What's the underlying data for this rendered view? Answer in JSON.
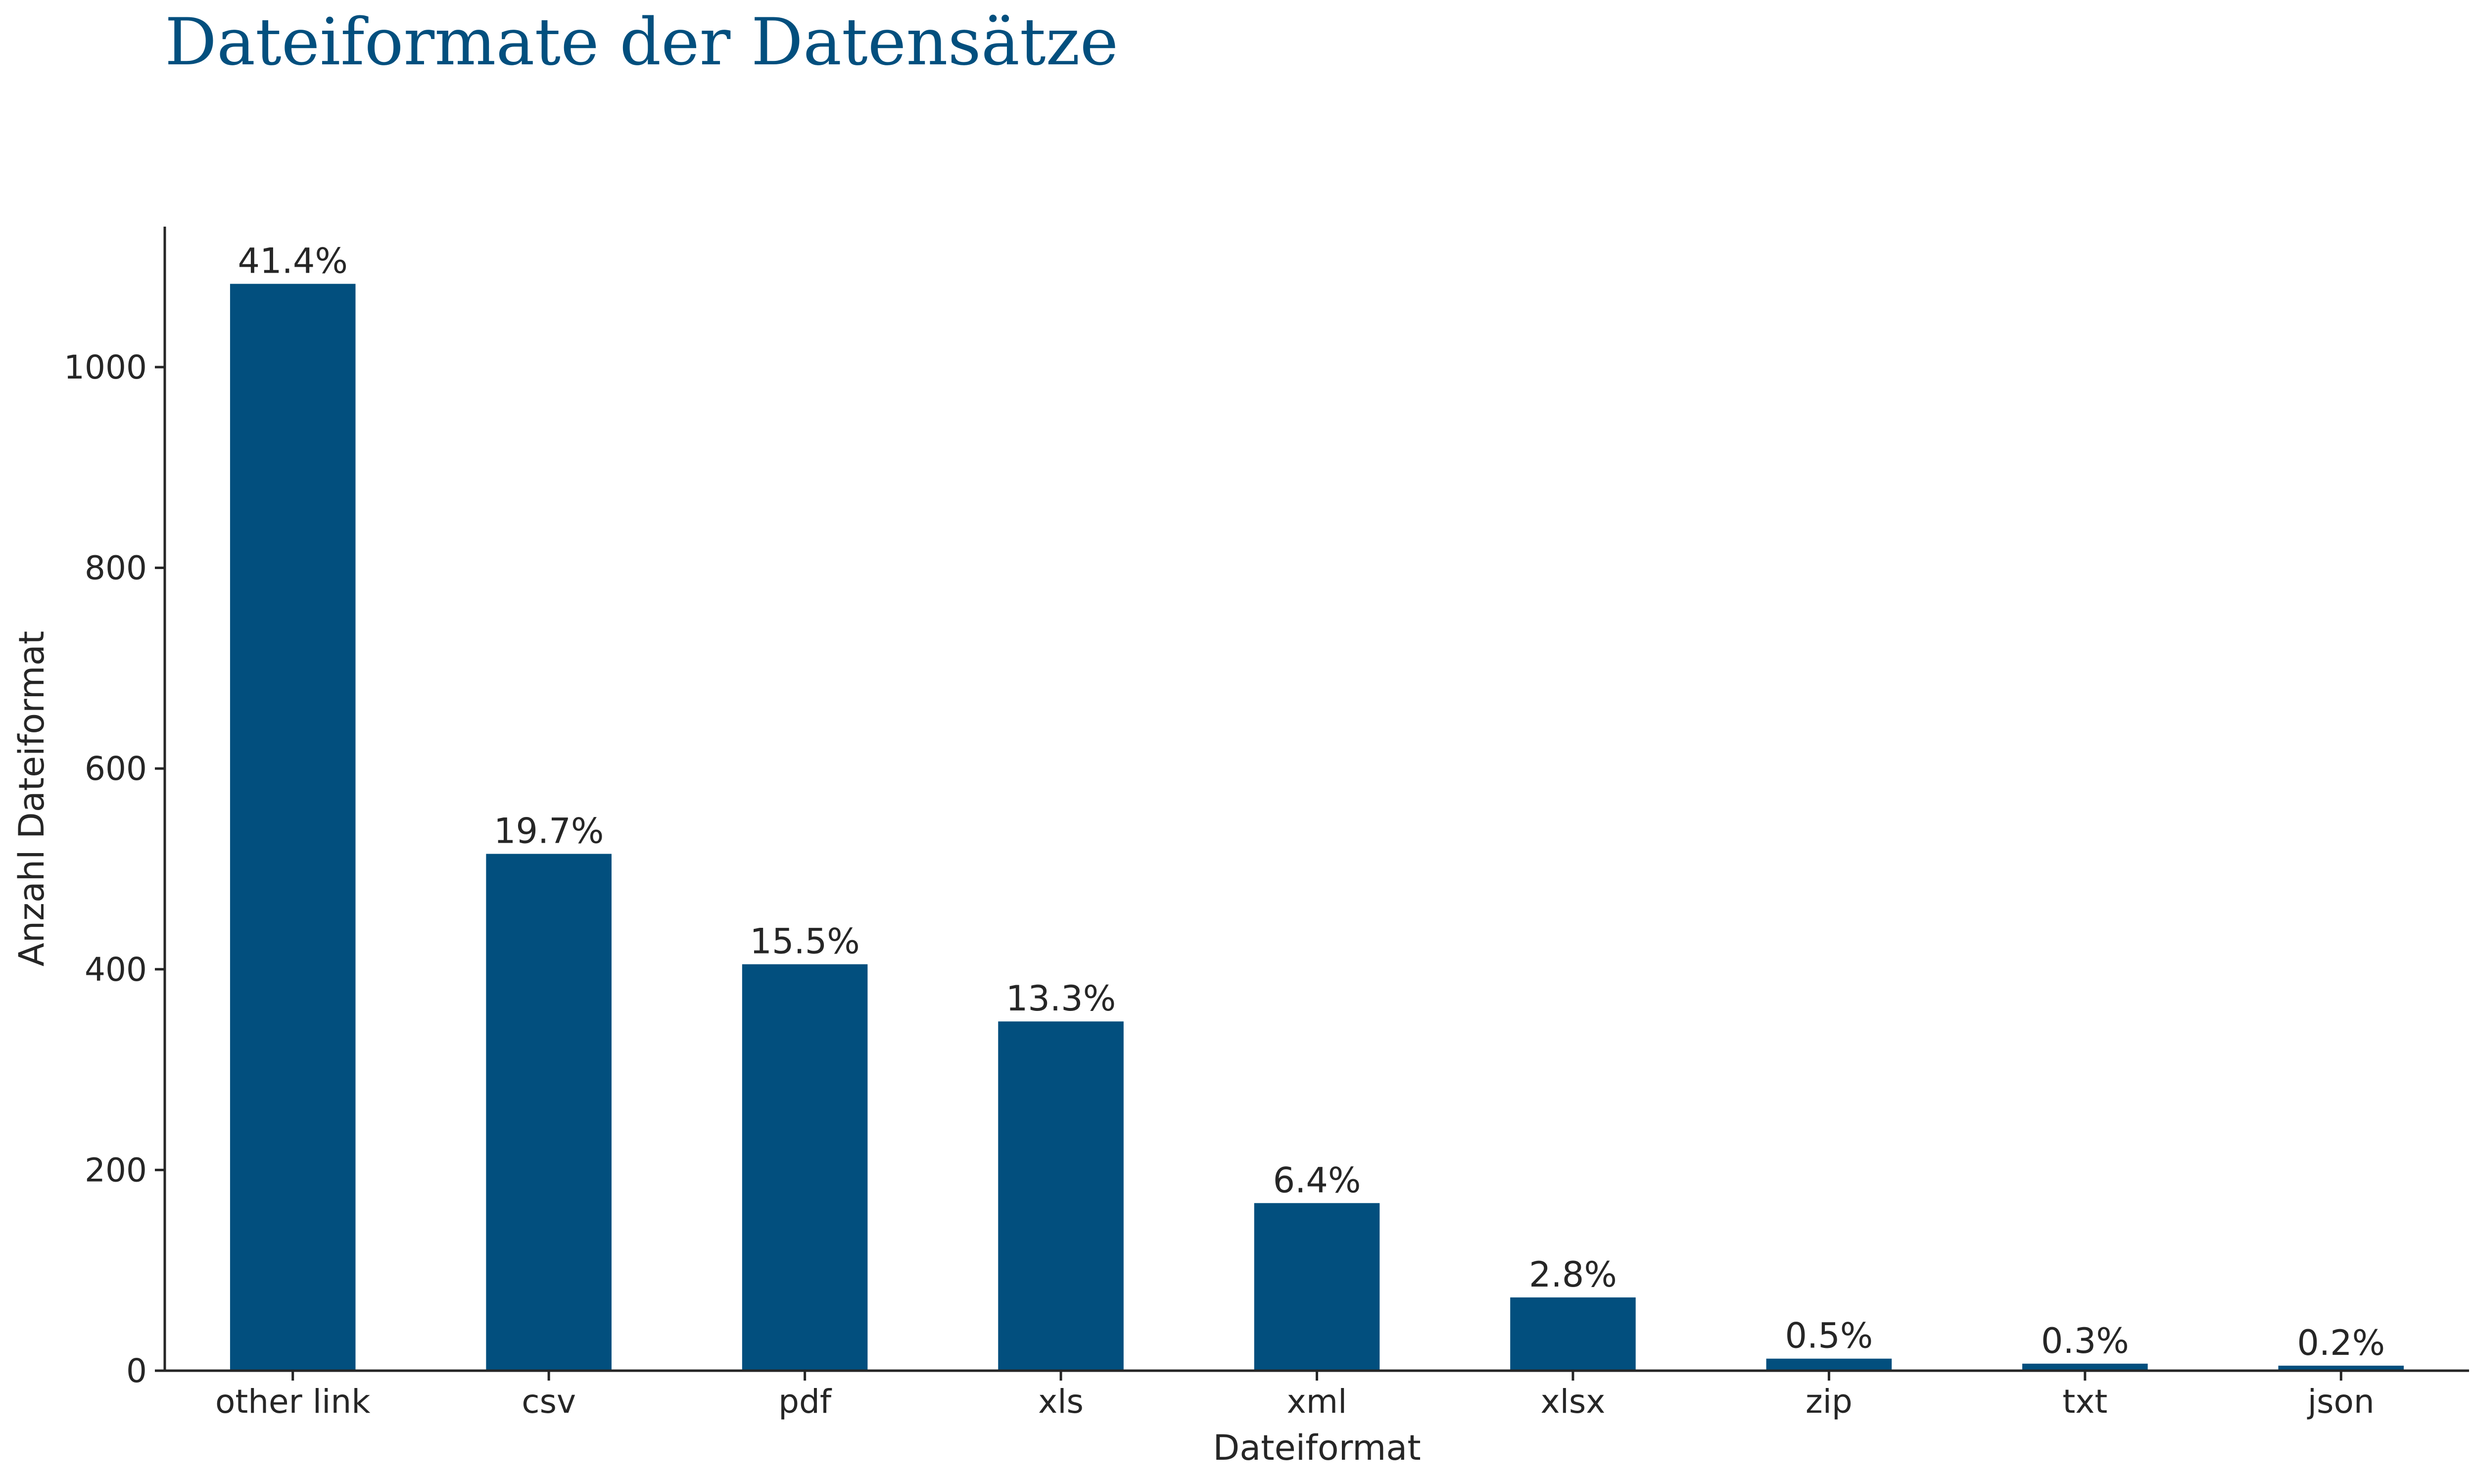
{
  "chart_data": {
    "type": "bar",
    "title": "Dateiformate der Datensätze",
    "xlabel": "Dateiformat",
    "ylabel": "Anzahl Dateiformat",
    "categories": [
      "other link",
      "csv",
      "pdf",
      "xls",
      "xml",
      "xlsx",
      "zip",
      "txt",
      "json"
    ],
    "values": [
      1083,
      515,
      405,
      348,
      167,
      73,
      12,
      7,
      5
    ],
    "labels": [
      "41.4%",
      "19.7%",
      "15.5%",
      "13.3%",
      "6.4%",
      "2.8%",
      "0.5%",
      "0.3%",
      "0.2%"
    ],
    "yticks": [
      0,
      200,
      400,
      600,
      800,
      1000
    ],
    "ylim": [
      0,
      1140
    ],
    "grid": false,
    "legend": "none",
    "bar_color": "#024f7e"
  }
}
